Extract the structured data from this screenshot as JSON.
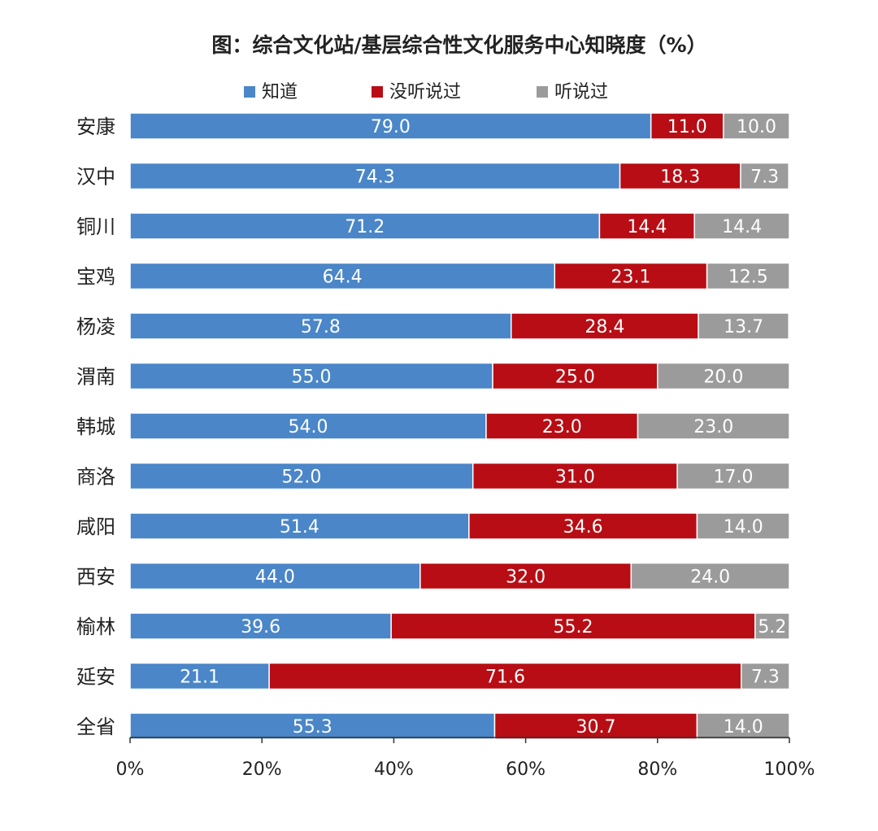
{
  "chart_data": {
    "type": "bar",
    "orientation": "horizontal",
    "stacked": true,
    "percent_stacked": true,
    "title": "图：综合文化站/基层综合性文化服务中心知晓度（%）",
    "xlabel": "",
    "ylabel": "",
    "xlim": [
      0,
      100
    ],
    "x_ticks": [
      "0%",
      "20%",
      "40%",
      "60%",
      "80%",
      "100%"
    ],
    "grid": false,
    "legend_position": "top",
    "categories": [
      "安康",
      "汉中",
      "铜川",
      "宝鸡",
      "杨凌",
      "渭南",
      "韩城",
      "商洛",
      "咸阳",
      "西安",
      "榆林",
      "延安",
      "全省"
    ],
    "series": [
      {
        "name": "知道",
        "color": "#4A86C8",
        "values": [
          79.0,
          74.3,
          71.2,
          64.4,
          57.8,
          55.0,
          54.0,
          52.0,
          51.4,
          44.0,
          39.6,
          21.1,
          55.3
        ],
        "labels": [
          "79.0",
          "74.3",
          "71.2",
          "64.4",
          "57.8",
          "55.0",
          "54.0",
          "52.0",
          "51.4",
          "44.0",
          "39.6",
          "21.1",
          "55.3"
        ]
      },
      {
        "name": "没听说过",
        "color": "#B80D14",
        "values": [
          11.0,
          18.3,
          14.4,
          23.1,
          28.4,
          25.0,
          23.0,
          31.0,
          34.6,
          32.0,
          55.2,
          71.6,
          30.7
        ],
        "labels": [
          "11.0",
          "18.3",
          "14.4",
          "23.1",
          "28.4",
          "25.0",
          "23.0",
          "31.0",
          "34.6",
          "32.0",
          "55.2",
          "71.6",
          "30.7"
        ]
      },
      {
        "name": "听说过",
        "color": "#9B9B9B",
        "values": [
          10.0,
          7.3,
          14.4,
          12.5,
          13.7,
          20.0,
          23.0,
          17.0,
          14.0,
          24.0,
          5.2,
          7.3,
          14.0
        ],
        "labels": [
          "10.0",
          "7.3",
          "14.4",
          "12.5",
          "13.7",
          "20.0",
          "23.0",
          "17.0",
          "14.0",
          "24.0",
          "5.2",
          "7.3",
          "14.0"
        ]
      }
    ]
  }
}
